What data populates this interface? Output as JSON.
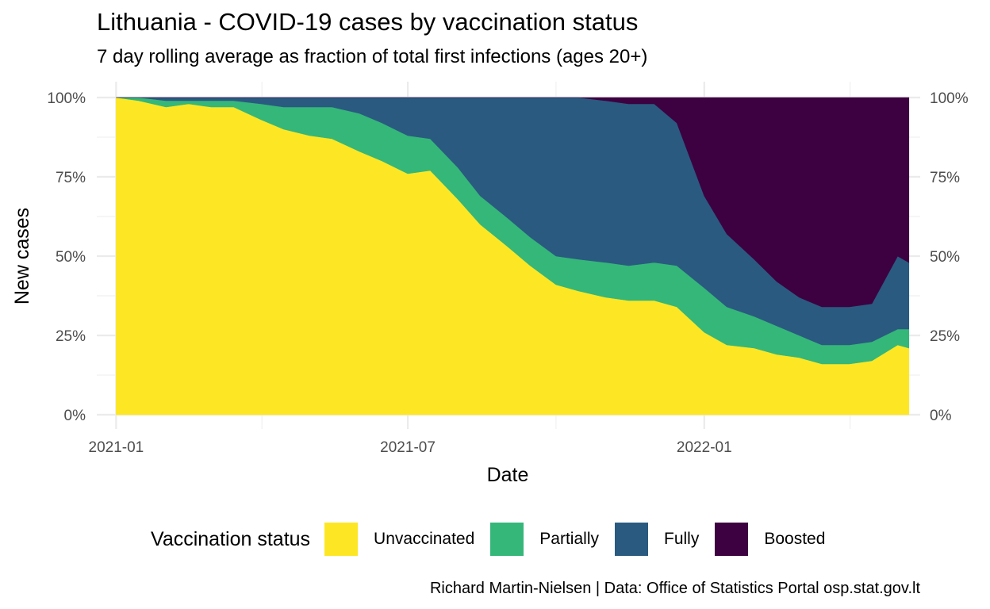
{
  "chart_data": {
    "type": "area",
    "stacked": true,
    "normalized": true,
    "title": "Lithuania - COVID-19 cases by vaccination status",
    "subtitle": "7 day rolling average as fraction of total first infections (ages 20+)",
    "xlabel": "Date",
    "ylabel": "New cases",
    "caption": "Richard Martin-Nielsen | Data: Office of Statistics Portal osp.stat.gov.lt",
    "x_ticks": [
      "2021-01-01",
      "2021-07-01",
      "2022-01-01"
    ],
    "x_tick_labels": [
      "2021-01",
      "2021-07",
      "2022-01"
    ],
    "y_ticks": [
      0,
      0.25,
      0.5,
      0.75,
      1.0
    ],
    "y_tick_labels": [
      "0%",
      "25%",
      "50%",
      "75%",
      "100%"
    ],
    "xlim": [
      "2020-12-20",
      "2022-05-15"
    ],
    "ylim": [
      0,
      1
    ],
    "grid": true,
    "secondary_y_axis": true,
    "legend_title": "Vaccination status",
    "legend_position": "bottom",
    "x": [
      "2021-01-01",
      "2021-01-15",
      "2021-02-01",
      "2021-02-15",
      "2021-03-01",
      "2021-03-15",
      "2021-04-01",
      "2021-04-15",
      "2021-05-01",
      "2021-05-15",
      "2021-06-01",
      "2021-06-15",
      "2021-07-01",
      "2021-07-15",
      "2021-08-01",
      "2021-08-15",
      "2021-09-01",
      "2021-09-15",
      "2021-10-01",
      "2021-10-15",
      "2021-11-01",
      "2021-11-15",
      "2021-12-01",
      "2021-12-15",
      "2022-01-01",
      "2022-01-15",
      "2022-02-01",
      "2022-02-15",
      "2022-03-01",
      "2022-03-15",
      "2022-04-01",
      "2022-04-15",
      "2022-05-01",
      "2022-05-08"
    ],
    "series": [
      {
        "name": "Unvaccinated",
        "color": "#fde725",
        "values": [
          1.0,
          0.99,
          0.97,
          0.98,
          0.97,
          0.97,
          0.93,
          0.9,
          0.88,
          0.87,
          0.83,
          0.8,
          0.76,
          0.77,
          0.68,
          0.6,
          0.53,
          0.47,
          0.41,
          0.39,
          0.37,
          0.36,
          0.36,
          0.34,
          0.26,
          0.22,
          0.21,
          0.19,
          0.18,
          0.16,
          0.16,
          0.17,
          0.22,
          0.21
        ]
      },
      {
        "name": "Partially",
        "color": "#35b779",
        "values": [
          0.0,
          0.01,
          0.02,
          0.01,
          0.02,
          0.02,
          0.05,
          0.07,
          0.09,
          0.1,
          0.12,
          0.12,
          0.12,
          0.1,
          0.1,
          0.09,
          0.09,
          0.09,
          0.09,
          0.1,
          0.11,
          0.11,
          0.12,
          0.13,
          0.14,
          0.12,
          0.1,
          0.09,
          0.07,
          0.06,
          0.06,
          0.06,
          0.05,
          0.06
        ]
      },
      {
        "name": "Fully",
        "color": "#2a5a80",
        "values": [
          0.0,
          0.0,
          0.01,
          0.01,
          0.01,
          0.01,
          0.02,
          0.03,
          0.03,
          0.03,
          0.05,
          0.08,
          0.12,
          0.13,
          0.22,
          0.31,
          0.38,
          0.44,
          0.5,
          0.51,
          0.51,
          0.51,
          0.5,
          0.45,
          0.29,
          0.23,
          0.18,
          0.14,
          0.12,
          0.12,
          0.12,
          0.12,
          0.23,
          0.21
        ]
      },
      {
        "name": "Boosted",
        "color": "#3d0040",
        "values": [
          0.0,
          0.0,
          0.0,
          0.0,
          0.0,
          0.0,
          0.0,
          0.0,
          0.0,
          0.0,
          0.0,
          0.0,
          0.0,
          0.0,
          0.0,
          0.0,
          0.0,
          0.0,
          0.0,
          0.0,
          0.01,
          0.02,
          0.02,
          0.08,
          0.31,
          0.43,
          0.51,
          0.58,
          0.63,
          0.66,
          0.66,
          0.65,
          0.5,
          0.52
        ]
      }
    ]
  }
}
